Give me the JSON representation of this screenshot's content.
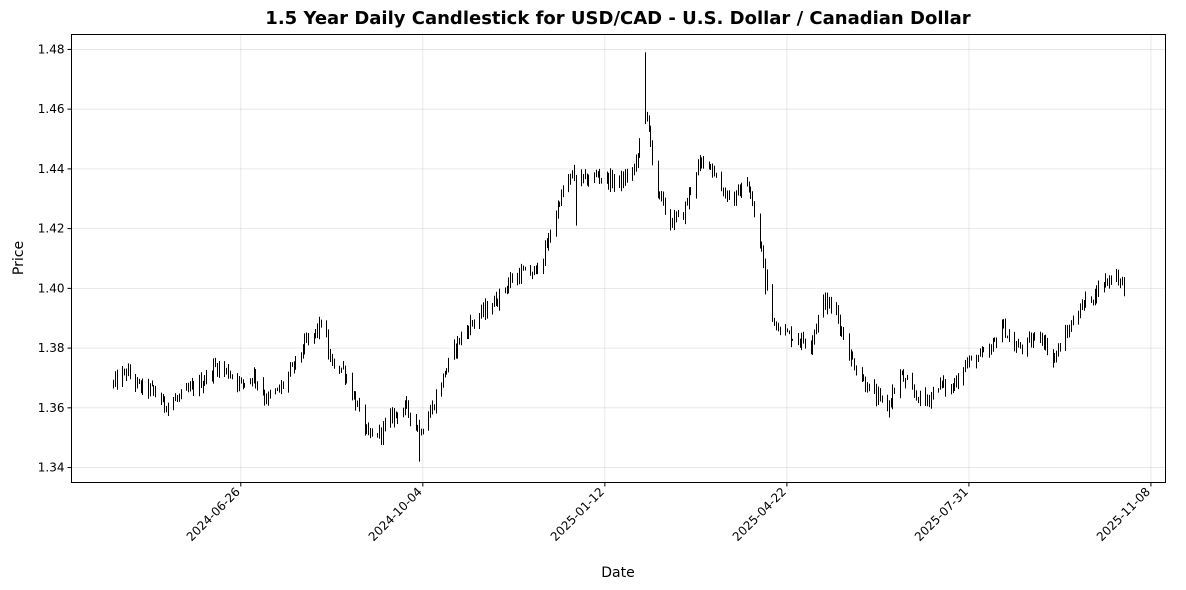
{
  "chart_data": {
    "type": "candlestick",
    "title": "1.5 Year Daily Candlestick for USD/CAD - U.S. Dollar / Canadian Dollar",
    "xlabel": "Date",
    "ylabel": "Price",
    "ylim": [
      1.335,
      1.485
    ],
    "xlim": [
      "2024-03-25",
      "2025-11-16"
    ],
    "grid": true,
    "y_ticks": [
      "1.34",
      "1.36",
      "1.38",
      "1.40",
      "1.42",
      "1.44",
      "1.46",
      "1.48"
    ],
    "x_ticks": [
      "2024-06-26",
      "2024-10-04",
      "2025-01-12",
      "2025-04-22",
      "2025-07-31",
      "2025-11-08"
    ],
    "x_tick_rotation": 45,
    "candle_color": "#000000",
    "series_anchors": [
      [
        "2024-04-17",
        1.368
      ],
      [
        "2024-04-24",
        1.372
      ],
      [
        "2024-05-01",
        1.367
      ],
      [
        "2024-05-08",
        1.366
      ],
      [
        "2024-05-15",
        1.361
      ],
      [
        "2024-05-22",
        1.363
      ],
      [
        "2024-05-29",
        1.366
      ],
      [
        "2024-06-05",
        1.369
      ],
      [
        "2024-06-12",
        1.374
      ],
      [
        "2024-06-19",
        1.372
      ],
      [
        "2024-06-26",
        1.368
      ],
      [
        "2024-07-03",
        1.371
      ],
      [
        "2024-07-10",
        1.363
      ],
      [
        "2024-07-17",
        1.366
      ],
      [
        "2024-07-24",
        1.373
      ],
      [
        "2024-07-31",
        1.381
      ],
      [
        "2024-08-07",
        1.386
      ],
      [
        "2024-08-10",
        1.39
      ],
      [
        "2024-08-14",
        1.375
      ],
      [
        "2024-08-21",
        1.373
      ],
      [
        "2024-08-28",
        1.362
      ],
      [
        "2024-09-04",
        1.35
      ],
      [
        "2024-09-11",
        1.352
      ],
      [
        "2024-09-18",
        1.358
      ],
      [
        "2024-09-25",
        1.36
      ],
      [
        "2024-10-02",
        1.352
      ],
      [
        "2024-10-09",
        1.36
      ],
      [
        "2024-10-16",
        1.372
      ],
      [
        "2024-10-23",
        1.382
      ],
      [
        "2024-10-30",
        1.388
      ],
      [
        "2024-11-06",
        1.392
      ],
      [
        "2024-11-13",
        1.396
      ],
      [
        "2024-11-20",
        1.402
      ],
      [
        "2024-11-27",
        1.405
      ],
      [
        "2024-12-04",
        1.405
      ],
      [
        "2024-12-11",
        1.414
      ],
      [
        "2024-12-18",
        1.43
      ],
      [
        "2024-12-25",
        1.438
      ],
      [
        "2025-01-01",
        1.436
      ],
      [
        "2025-01-08",
        1.438
      ],
      [
        "2025-01-15",
        1.436
      ],
      [
        "2025-01-22",
        1.436
      ],
      [
        "2025-01-29",
        1.441
      ],
      [
        "2025-02-03",
        1.46
      ],
      [
        "2025-02-10",
        1.432
      ],
      [
        "2025-02-17",
        1.422
      ],
      [
        "2025-02-24",
        1.425
      ],
      [
        "2025-03-03",
        1.44
      ],
      [
        "2025-03-10",
        1.443
      ],
      [
        "2025-03-17",
        1.433
      ],
      [
        "2025-03-24",
        1.43
      ],
      [
        "2025-03-31",
        1.436
      ],
      [
        "2025-04-07",
        1.415
      ],
      [
        "2025-04-14",
        1.39
      ],
      [
        "2025-04-21",
        1.385
      ],
      [
        "2025-04-28",
        1.383
      ],
      [
        "2025-05-05",
        1.382
      ],
      [
        "2025-05-12",
        1.396
      ],
      [
        "2025-05-19",
        1.392
      ],
      [
        "2025-05-26",
        1.378
      ],
      [
        "2025-06-02",
        1.37
      ],
      [
        "2025-06-09",
        1.364
      ],
      [
        "2025-06-16",
        1.36
      ],
      [
        "2025-06-23",
        1.371
      ],
      [
        "2025-06-30",
        1.365
      ],
      [
        "2025-07-07",
        1.362
      ],
      [
        "2025-07-14",
        1.368
      ],
      [
        "2025-07-21",
        1.366
      ],
      [
        "2025-07-28",
        1.374
      ],
      [
        "2025-08-04",
        1.377
      ],
      [
        "2025-08-11",
        1.378
      ],
      [
        "2025-08-18",
        1.388
      ],
      [
        "2025-08-25",
        1.38
      ],
      [
        "2025-09-01",
        1.381
      ],
      [
        "2025-09-08",
        1.385
      ],
      [
        "2025-09-15",
        1.376
      ],
      [
        "2025-09-22",
        1.384
      ],
      [
        "2025-09-29",
        1.393
      ],
      [
        "2025-10-06",
        1.397
      ],
      [
        "2025-10-13",
        1.402
      ],
      [
        "2025-10-20",
        1.405
      ],
      [
        "2025-10-24",
        1.4
      ]
    ],
    "candle_spread": 0.003,
    "spikes": [
      {
        "date": "2025-02-03",
        "high": 1.479,
        "low": 1.455
      },
      {
        "date": "2024-08-10",
        "high": 1.394,
        "low": 1.382
      },
      {
        "date": "2024-10-02",
        "high": 1.356,
        "low": 1.342
      },
      {
        "date": "2025-04-10",
        "high": 1.41,
        "low": 1.398
      },
      {
        "date": "2024-12-27",
        "high": 1.438,
        "low": 1.421
      }
    ]
  }
}
